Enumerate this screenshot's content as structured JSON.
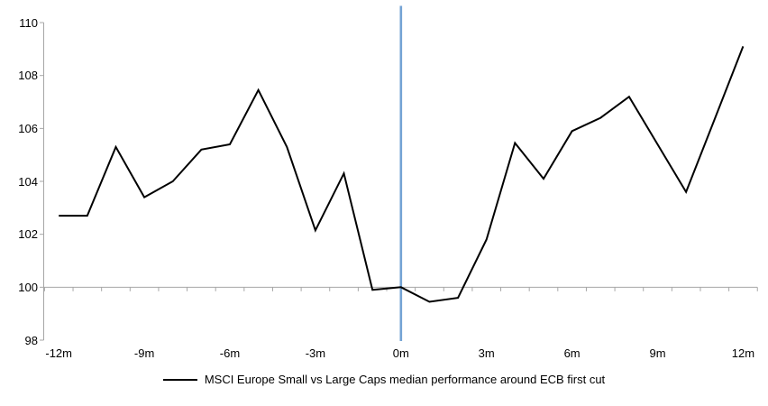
{
  "chart_data": {
    "type": "line",
    "title": "",
    "xlabel": "",
    "ylabel": "",
    "x_months": [
      -12,
      -11,
      -10,
      -9,
      -8,
      -7,
      -6,
      -5,
      -4,
      -3,
      -2,
      -1,
      0,
      1,
      2,
      3,
      4,
      5,
      6,
      7,
      8,
      9,
      10,
      11,
      12
    ],
    "series": [
      {
        "name": "MSCI Europe Small vs Large Caps median performance around ECB first cut",
        "color": "#000000",
        "values": [
          102.7,
          102.7,
          105.3,
          103.4,
          104.0,
          105.2,
          105.4,
          107.45,
          105.3,
          102.15,
          104.3,
          99.9,
          100.0,
          99.45,
          99.6,
          101.8,
          105.45,
          104.1,
          105.9,
          106.4,
          107.2,
          105.4,
          103.6,
          106.35,
          109.1
        ]
      }
    ],
    "event_line": {
      "x_month": 0,
      "color": "#74A3D4"
    },
    "baseline_value": 100,
    "x_axis": {
      "tick_labels": [
        "-12m",
        "-9m",
        "-6m",
        "-3m",
        "0m",
        "3m",
        "6m",
        "9m",
        "12m"
      ],
      "tick_months": [
        -12,
        -9,
        -6,
        -3,
        0,
        3,
        6,
        9,
        12
      ],
      "minor_ticks": "monthly, between categories, below baseline"
    },
    "y_axis": {
      "tick_labels": [
        "98",
        "100",
        "102",
        "104",
        "106",
        "108",
        "110"
      ],
      "tick_values": [
        98,
        100,
        102,
        104,
        106,
        108,
        110
      ],
      "range": [
        98,
        110.6
      ]
    },
    "grid": "single horizontal line at 100 only",
    "legend_position": "bottom-center",
    "axis_color": "#A6A6A6"
  },
  "legend": {
    "series_label": "MSCI Europe Small vs Large Caps median performance around ECB first cut"
  }
}
